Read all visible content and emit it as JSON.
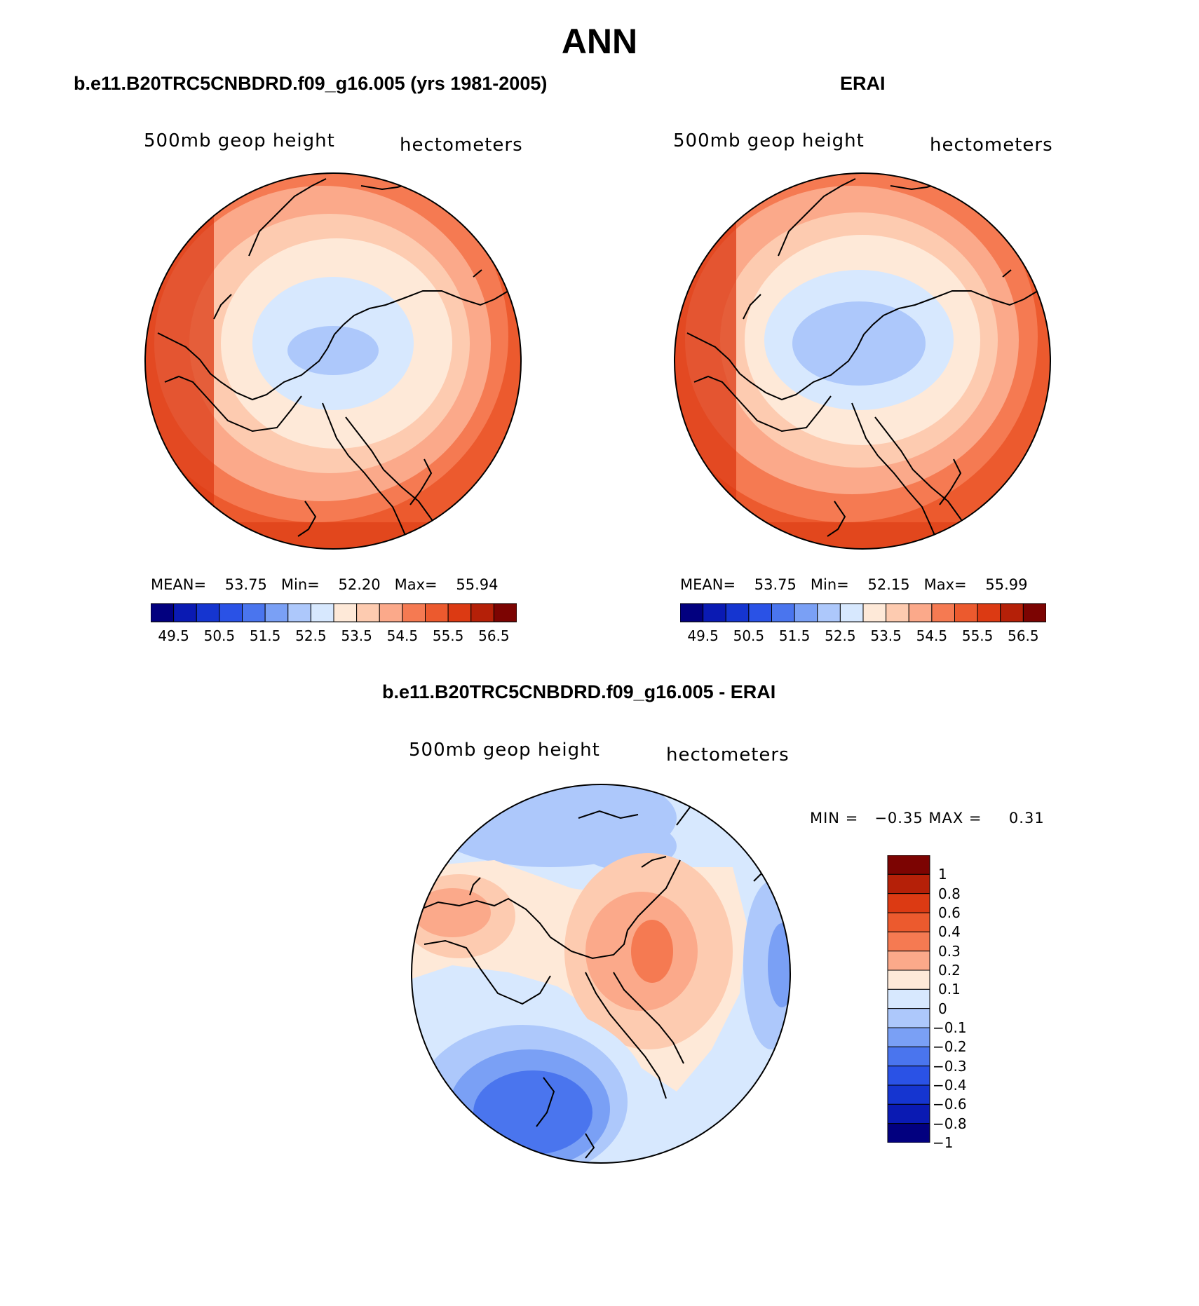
{
  "title": "ANN",
  "panels": [
    {
      "title": "b.e11.B20TRC5CNBDRD.f09_g16.005 (yrs 1981-2005)",
      "left_label": "500mb  geop  height",
      "right_label": "hectometers",
      "stats": {
        "mean_label": "MEAN=",
        "mean": "53.75",
        "min_label": "Min=",
        "min": "52.20",
        "max_label": "Max=",
        "max": "55.94"
      }
    },
    {
      "title": "ERAI",
      "left_label": "500mb  geop  height",
      "right_label": "hectometers",
      "stats": {
        "mean_label": "MEAN=",
        "mean": "53.75",
        "min_label": "Min=",
        "min": "52.15",
        "max_label": "Max=",
        "max": "55.99"
      }
    },
    {
      "title": "b.e11.B20TRC5CNBDRD.f09_g16.005 - ERAI",
      "left_label": "500mb  geop  height",
      "right_label": "hectometers",
      "minmax": {
        "min_label": "MIN =",
        "min": "−0.35",
        "max_label": "MAX =",
        "max": "0.31"
      }
    }
  ],
  "colorbar_abs": {
    "colors": [
      "#02007f",
      "#0a1ab3",
      "#1535d0",
      "#2a52e6",
      "#4a75ee",
      "#7aa0f5",
      "#adc8fb",
      "#d7e8fe",
      "#fee9d8",
      "#fdcbb0",
      "#fba98a",
      "#f57a52",
      "#ec5a2e",
      "#dc3a13",
      "#b52008",
      "#7c0402"
    ],
    "labels": [
      "49.5",
      "50.5",
      "51.5",
      "52.5",
      "53.5",
      "54.5",
      "55.5",
      "56.5"
    ]
  },
  "colorbar_diff": {
    "colors": [
      "#7c0402",
      "#b52008",
      "#dc3a13",
      "#ec5a2e",
      "#f57a52",
      "#fba98a",
      "#fee9d8",
      "#d7e8fe",
      "#adc8fb",
      "#7aa0f5",
      "#4a75ee",
      "#2a52e6",
      "#1535d0",
      "#0a1ab3",
      "#02007f"
    ],
    "labels": [
      "1",
      "0.8",
      "0.6",
      "0.4",
      "0.3",
      "0.2",
      "0.1",
      "0",
      "−0.1",
      "−0.2",
      "−0.3",
      "−0.4",
      "−0.6",
      "−0.8",
      "−1"
    ]
  }
}
